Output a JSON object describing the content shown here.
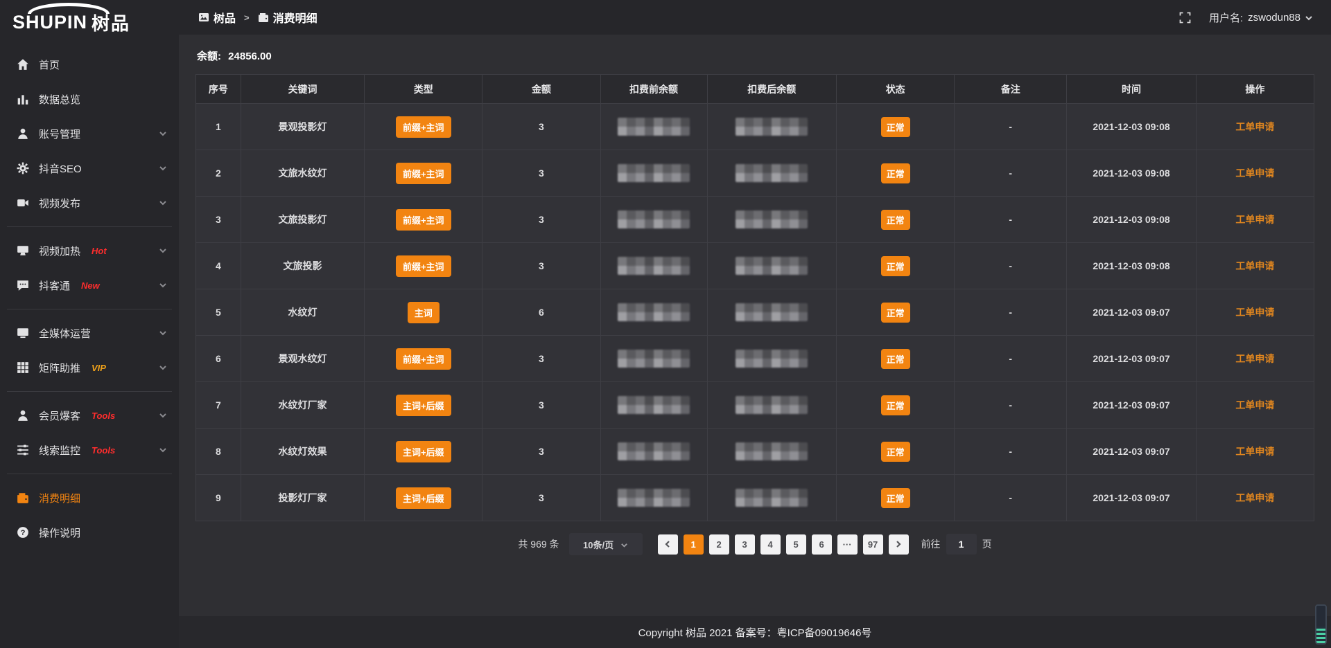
{
  "logo": {
    "brand_en": "SHUPIN",
    "brand_cn": "树品"
  },
  "topbar": {
    "breadcrumb": [
      {
        "label": "树品",
        "icon": "app-image-icon"
      },
      {
        "label": "消费明细",
        "icon": "wallet-icon"
      }
    ],
    "separator": ">",
    "username_label": "用户名:",
    "username": "zswodun88"
  },
  "sidebar": {
    "items": [
      {
        "label": "首页",
        "icon": "home-icon",
        "chevron": false
      },
      {
        "label": "数据总览",
        "icon": "bar-chart-icon",
        "chevron": false
      },
      {
        "label": "账号管理",
        "icon": "user-icon",
        "chevron": true
      },
      {
        "label": "抖音SEO",
        "icon": "gear-icon",
        "chevron": true
      },
      {
        "label": "视频发布",
        "icon": "video-camera-icon",
        "chevron": true
      },
      {
        "divider": true
      },
      {
        "label": "视频加热",
        "icon": "monitor-icon",
        "tag": "Hot",
        "tag_color": "#ff2d2d",
        "chevron": true
      },
      {
        "label": "抖客通",
        "icon": "chat-bubble-icon",
        "tag": "New",
        "tag_color": "#ff2d2d",
        "chevron": true
      },
      {
        "divider": true
      },
      {
        "label": "全媒体运营",
        "icon": "display-icon",
        "chevron": true
      },
      {
        "label": "矩阵助推",
        "icon": "grid-icon",
        "tag": "VIP",
        "tag_color": "#f0a21a",
        "chevron": true
      },
      {
        "divider": true
      },
      {
        "label": "会员爆客",
        "icon": "member-icon",
        "tag": "Tools",
        "tag_color": "#ff2d2d",
        "chevron": true
      },
      {
        "label": "线索监控",
        "icon": "sliders-icon",
        "tag": "Tools",
        "tag_color": "#ff2d2d",
        "chevron": true
      },
      {
        "divider": true
      },
      {
        "label": "消费明细",
        "icon": "wallet-icon",
        "active": true,
        "chevron": false
      },
      {
        "label": "操作说明",
        "icon": "help-circle-icon",
        "chevron": false
      }
    ]
  },
  "balance": {
    "label": "余额:",
    "value": "24856.00"
  },
  "table": {
    "columns": [
      "序号",
      "关键词",
      "类型",
      "金额",
      "扣费前余额",
      "扣费后余额",
      "状态",
      "备注",
      "时间",
      "操作"
    ],
    "rows": [
      {
        "index": "1",
        "keyword": "景观投影灯",
        "type": "前缀+主词",
        "amount": "3",
        "status": "正常",
        "remark": "-",
        "time": "2021-12-03 09:08",
        "action": "工单申请"
      },
      {
        "index": "2",
        "keyword": "文旅水纹灯",
        "type": "前缀+主词",
        "amount": "3",
        "status": "正常",
        "remark": "-",
        "time": "2021-12-03 09:08",
        "action": "工单申请"
      },
      {
        "index": "3",
        "keyword": "文旅投影灯",
        "type": "前缀+主词",
        "amount": "3",
        "status": "正常",
        "remark": "-",
        "time": "2021-12-03 09:08",
        "action": "工单申请"
      },
      {
        "index": "4",
        "keyword": "文旅投影",
        "type": "前缀+主词",
        "amount": "3",
        "status": "正常",
        "remark": "-",
        "time": "2021-12-03 09:08",
        "action": "工单申请"
      },
      {
        "index": "5",
        "keyword": "水纹灯",
        "type": "主词",
        "amount": "6",
        "status": "正常",
        "remark": "-",
        "time": "2021-12-03 09:07",
        "action": "工单申请"
      },
      {
        "index": "6",
        "keyword": "景观水纹灯",
        "type": "前缀+主词",
        "amount": "3",
        "status": "正常",
        "remark": "-",
        "time": "2021-12-03 09:07",
        "action": "工单申请"
      },
      {
        "index": "7",
        "keyword": "水纹灯厂家",
        "type": "主词+后缀",
        "amount": "3",
        "status": "正常",
        "remark": "-",
        "time": "2021-12-03 09:07",
        "action": "工单申请"
      },
      {
        "index": "8",
        "keyword": "水纹灯效果",
        "type": "主词+后缀",
        "amount": "3",
        "status": "正常",
        "remark": "-",
        "time": "2021-12-03 09:07",
        "action": "工单申请"
      },
      {
        "index": "9",
        "keyword": "投影灯厂家",
        "type": "主词+后缀",
        "amount": "3",
        "status": "正常",
        "remark": "-",
        "time": "2021-12-03 09:07",
        "action": "工单申请"
      }
    ],
    "masked_columns_note": "扣费前余额 and 扣费后余额 values are pixelated/censored in the screenshot"
  },
  "pagination": {
    "total": "共 969 条",
    "page_size": "10条/页",
    "pages": [
      "1",
      "2",
      "3",
      "4",
      "5",
      "6",
      "···",
      "97"
    ],
    "active_page": "1",
    "goto_label": "前往",
    "goto_value": "1",
    "goto_suffix": "页"
  },
  "footer": {
    "copyright": "Copyright 树品 2021 备案号：粤ICP备09019646号"
  },
  "colors": {
    "accent_orange": "#f28411",
    "link_orange": "#e0861f",
    "hot_red": "#ff2d2d",
    "vip_gold": "#f0a21a",
    "sidebar_bg": "#26262a",
    "content_bg": "#2f2f33",
    "table_row_bg": "#323237",
    "table_head_bg": "#2a2a2e"
  }
}
